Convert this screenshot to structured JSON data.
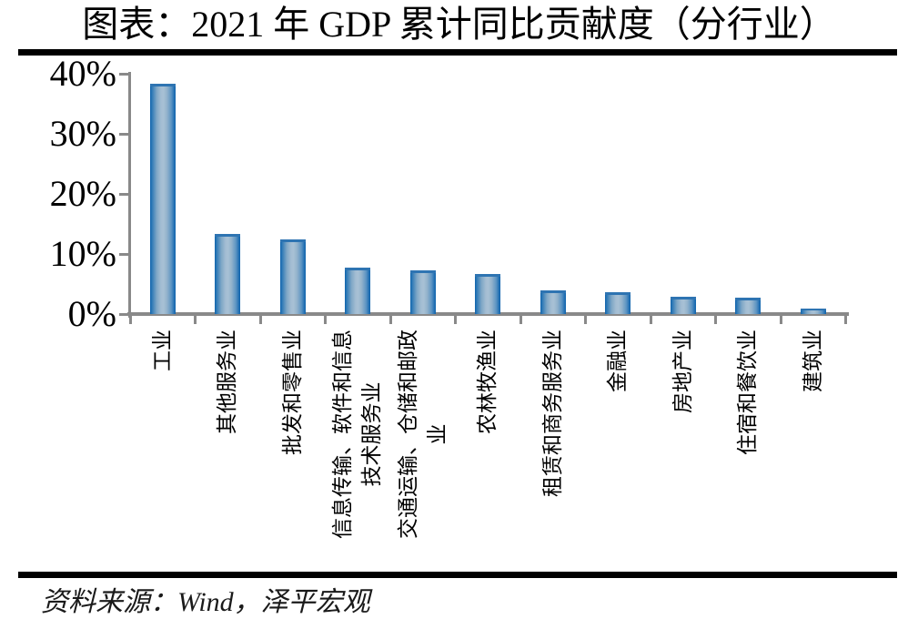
{
  "title": "图表：2021 年 GDP 累计同比贡献度（分行业）",
  "source_note": "资料来源：Wind，泽平宏观",
  "chart_data": {
    "type": "bar",
    "title": "图表：2021 年 GDP 累计同比贡献度（分行业）",
    "categories": [
      "工业",
      "其他服务业",
      "批发和零售业",
      "信息传输、软件和信息\n技术服务业",
      "交通运输、仓储和邮政\n业",
      "农林牧渔业",
      "租赁和商务服务业",
      "金融业",
      "房地产业",
      "住宿和餐饮业",
      "建筑业"
    ],
    "values": [
      38.3,
      13.3,
      12.4,
      7.8,
      7.2,
      6.7,
      4.0,
      3.7,
      2.9,
      2.8,
      0.9
    ],
    "unit": "%",
    "xlabel": "",
    "ylabel": "",
    "ylim": [
      0,
      40
    ],
    "yticks": [
      0,
      10,
      20,
      30,
      40
    ],
    "ytick_labels": [
      "0%",
      "10%",
      "20%",
      "30%",
      "40%"
    ],
    "grid": false,
    "legend": "none",
    "source": "资料来源：Wind，泽平宏观"
  },
  "colors": {
    "bar_edge": "#0f64ad",
    "bar_center": "#a8c1d5",
    "bar_top_cap": "#2e74b2",
    "axis": "#898989",
    "separator": "#000000",
    "background": "#ffffff",
    "text": "#000000"
  }
}
